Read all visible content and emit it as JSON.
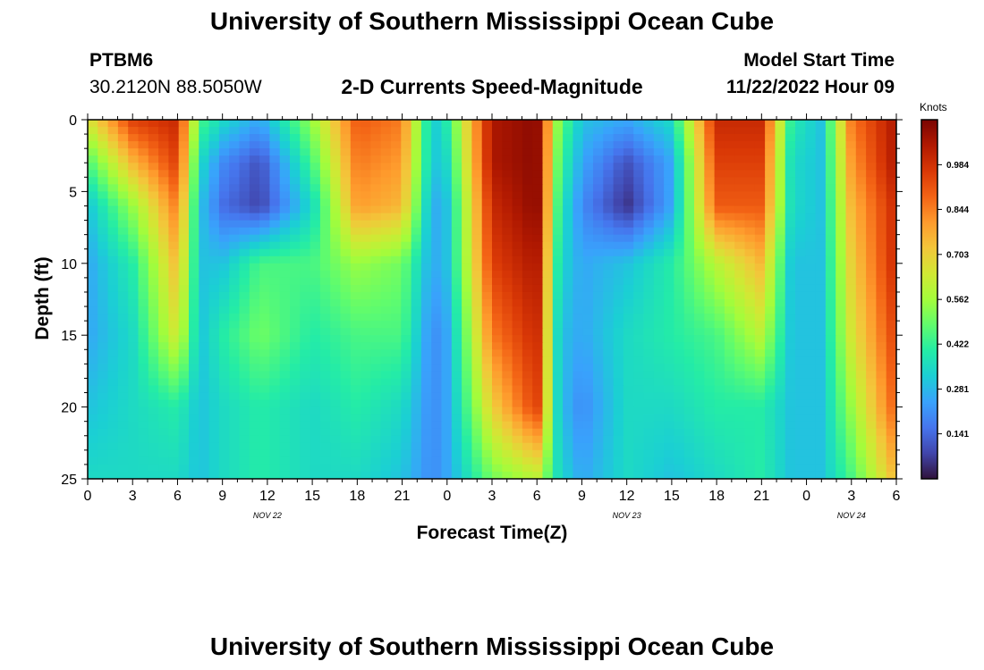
{
  "header": {
    "title": "University of Southern Mississippi Ocean Cube",
    "station": "PTBM6",
    "coordinates": "30.2120N  88.5050W",
    "plot_title": "2-D Currents Speed-Magnitude",
    "model_label": "Model Start Time",
    "model_time": "11/22/2022 Hour 09",
    "footer_title": "University of Southern Mississippi Ocean Cube"
  },
  "colorbar": {
    "unit": "Knots",
    "ticks": [
      "0.984",
      "0.844",
      "0.703",
      "0.562",
      "0.422",
      "0.281",
      "0.141"
    ],
    "tick_values": [
      0.984,
      0.844,
      0.703,
      0.562,
      0.422,
      0.281,
      0.141
    ],
    "range": [
      0.0,
      1.125
    ]
  },
  "chart_data": {
    "type": "heatmap",
    "title": "2-D Currents Speed-Magnitude",
    "xlabel": "Forecast Time(Z)",
    "ylabel": "Depth (ft)",
    "zlabel": "Knots",
    "x_ticks": [
      "0",
      "3",
      "6",
      "9",
      "12",
      "15",
      "18",
      "21",
      "0",
      "3",
      "6",
      "9",
      "12",
      "15",
      "18",
      "21",
      "0",
      "3",
      "6"
    ],
    "x_date_labels": [
      "NOV 22",
      "NOV 23",
      "NOV 24"
    ],
    "x_date_positions_hours": [
      12,
      36,
      51
    ],
    "x_range_hours": [
      0,
      54
    ],
    "y_ticks": [
      "0",
      "5",
      "10",
      "15",
      "20",
      "25"
    ],
    "y_range_ft": [
      0,
      25
    ],
    "y_inverted": true,
    "colormap": [
      "#30123b",
      "#4145ab",
      "#4675ed",
      "#39a2fc",
      "#1bcfd4",
      "#24eca6",
      "#61fc6c",
      "#a4fc3b",
      "#d1e834",
      "#f3c63a",
      "#fe9b2d",
      "#f36315",
      "#d93806",
      "#b11901",
      "#7a0402"
    ],
    "x_hours": [
      0,
      3,
      6,
      7.5,
      9,
      11.5,
      15,
      18,
      21,
      23,
      24,
      27,
      30,
      31.5,
      33,
      36,
      39,
      42,
      45,
      47,
      49,
      51,
      54
    ],
    "depths_ft": [
      0,
      3,
      6,
      10,
      15,
      20,
      25
    ],
    "speed_knots": [
      [
        0.65,
        0.95,
        1.0,
        0.45,
        0.35,
        0.25,
        0.55,
        0.9,
        0.85,
        0.3,
        0.4,
        1.05,
        1.1,
        0.5,
        0.3,
        0.25,
        0.35,
        1.0,
        1.0,
        0.4,
        0.3,
        0.85,
        1.05
      ],
      [
        0.45,
        0.75,
        0.95,
        0.35,
        0.2,
        0.1,
        0.45,
        0.85,
        0.8,
        0.3,
        0.35,
        1.05,
        1.1,
        0.45,
        0.25,
        0.1,
        0.25,
        0.95,
        0.95,
        0.35,
        0.3,
        0.8,
        1.05
      ],
      [
        0.3,
        0.55,
        0.85,
        0.3,
        0.15,
        0.08,
        0.35,
        0.8,
        0.75,
        0.25,
        0.3,
        1.0,
        1.1,
        0.4,
        0.2,
        0.05,
        0.25,
        0.9,
        0.9,
        0.35,
        0.3,
        0.75,
        1.0
      ],
      [
        0.25,
        0.4,
        0.75,
        0.3,
        0.3,
        0.45,
        0.45,
        0.55,
        0.5,
        0.25,
        0.3,
        0.95,
        1.05,
        0.35,
        0.25,
        0.3,
        0.4,
        0.6,
        0.75,
        0.3,
        0.3,
        0.7,
        1.0
      ],
      [
        0.25,
        0.35,
        0.65,
        0.3,
        0.4,
        0.5,
        0.4,
        0.45,
        0.45,
        0.2,
        0.25,
        0.85,
        1.0,
        0.3,
        0.25,
        0.35,
        0.4,
        0.45,
        0.6,
        0.3,
        0.3,
        0.65,
        0.95
      ],
      [
        0.3,
        0.35,
        0.4,
        0.3,
        0.35,
        0.4,
        0.35,
        0.4,
        0.35,
        0.2,
        0.25,
        0.7,
        0.95,
        0.3,
        0.2,
        0.35,
        0.35,
        0.4,
        0.4,
        0.3,
        0.3,
        0.55,
        0.9
      ],
      [
        0.35,
        0.35,
        0.35,
        0.3,
        0.35,
        0.4,
        0.35,
        0.35,
        0.3,
        0.2,
        0.25,
        0.5,
        0.6,
        0.35,
        0.25,
        0.35,
        0.3,
        0.35,
        0.4,
        0.3,
        0.3,
        0.45,
        0.75
      ]
    ]
  }
}
